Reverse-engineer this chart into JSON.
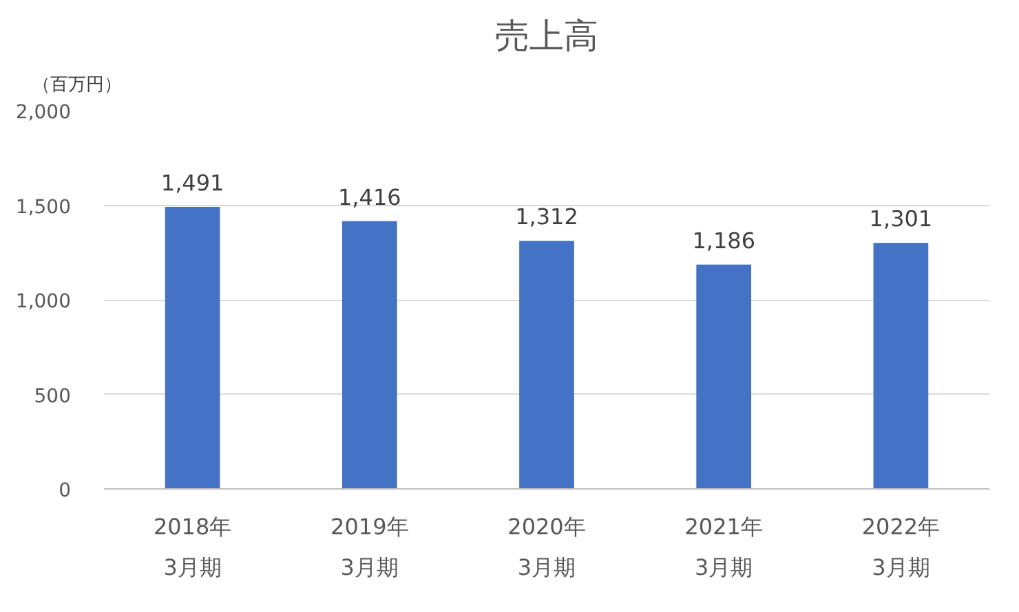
{
  "chart_data": {
    "type": "bar",
    "title": "売上高",
    "ylabel": "（百万円）",
    "categories": [
      "2018年\n3月期",
      "2019年\n3月期",
      "2020年\n3月期",
      "2021年\n3月期",
      "2022年\n3月期"
    ],
    "values": [
      1491,
      1416,
      1312,
      1186,
      1301
    ],
    "value_labels": [
      "1,491",
      "1,416",
      "1,312",
      "1,186",
      "1,301"
    ],
    "color": "#4472c4",
    "ylim": [
      0,
      2000
    ],
    "yticks": [
      0,
      500,
      {
        "value": 1000,
        "label": "1,000"
      },
      {
        "value": 1500,
        "label": "1,500"
      },
      {
        "value": 2000,
        "label": "2,000"
      }
    ],
    "grid": "y"
  }
}
